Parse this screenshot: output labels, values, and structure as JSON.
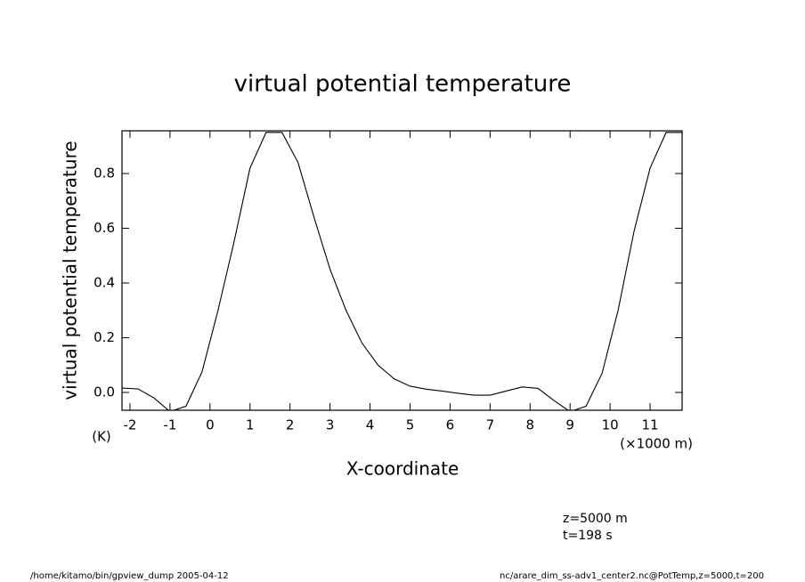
{
  "chart_data": {
    "type": "line",
    "title": "virtual potential temperature",
    "y_label": "virtual potential temperature",
    "y_unit": "(K)",
    "x_label": "X-coordinate",
    "x_unit": "(×1000 m)",
    "annotations": [
      "z=5000  m",
      "t=198  s"
    ],
    "footer_left": "/home/kitamo/bin/gpview_dump  2005-04-12",
    "footer_right": "nc/arare_dim_ss-adv1_center2.nc@PotTemp,z=5000,t=200",
    "color": "#000000",
    "x": [
      -2.2,
      -1.8,
      -1.4,
      -1.0,
      -0.6,
      -0.2,
      0.2,
      0.6,
      1.0,
      1.4,
      1.8,
      2.2,
      2.6,
      3.0,
      3.4,
      3.8,
      4.2,
      4.6,
      5.0,
      5.4,
      5.8,
      6.2,
      6.6,
      7.0,
      7.4,
      7.8,
      8.2,
      8.6,
      9.0,
      9.4,
      9.8,
      10.2,
      10.6,
      11.0,
      11.4,
      11.8
    ],
    "values": [
      0.016,
      0.013,
      -0.02,
      -0.07,
      -0.05,
      0.075,
      0.3,
      0.55,
      0.82,
      0.95,
      0.95,
      0.84,
      0.64,
      0.45,
      0.3,
      0.18,
      0.1,
      0.05,
      0.023,
      0.012,
      0.005,
      -0.003,
      -0.01,
      -0.01,
      0.005,
      0.02,
      0.015,
      -0.03,
      -0.07,
      -0.05,
      0.07,
      0.3,
      0.59,
      0.82,
      0.95,
      0.95
    ],
    "xlim": [
      -2.2,
      11.8
    ],
    "ylim": [
      -0.065,
      0.956
    ],
    "xticks": [
      -2,
      -1,
      0,
      1,
      2,
      3,
      4,
      5,
      6,
      7,
      8,
      9,
      10,
      11
    ],
    "yticks": [
      {
        "value": 0,
        "label": "0.0"
      },
      0.2,
      0.4,
      0.6,
      0.8
    ]
  }
}
